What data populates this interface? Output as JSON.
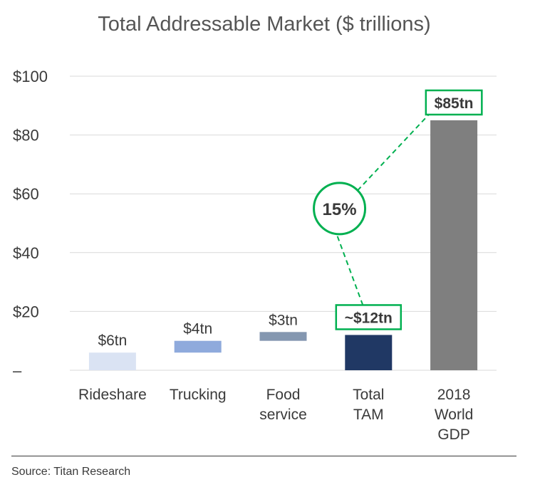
{
  "chart_data": {
    "type": "bar",
    "title": "Total Addressable Market ($ trillions)",
    "categories": [
      [
        "Rideshare"
      ],
      [
        "Trucking"
      ],
      [
        "Food",
        "service"
      ],
      [
        "Total",
        "TAM"
      ],
      [
        "2018",
        "World",
        "GDP"
      ]
    ],
    "ranges": [
      [
        0,
        6
      ],
      [
        6,
        10
      ],
      [
        10,
        13
      ],
      [
        0,
        12
      ],
      [
        0,
        85
      ]
    ],
    "data_labels": [
      "$6tn",
      "$4tn",
      "$3tn",
      "~$12tn",
      "$85tn"
    ],
    "highlighted_labels": [
      3,
      4
    ],
    "ylim": [
      0,
      100
    ],
    "yticks": [
      0,
      20,
      40,
      60,
      80,
      100
    ],
    "ytick_labels": [
      "–",
      "$20",
      "$40",
      "$60",
      "$80",
      "$100"
    ],
    "grid": true,
    "annotation": "15%",
    "colors": [
      "#dae3f3",
      "#8faadc",
      "#8497b0",
      "#203864",
      "#7f7f7f"
    ],
    "accent_color": "#00b050"
  },
  "source": "Source: Titan Research"
}
